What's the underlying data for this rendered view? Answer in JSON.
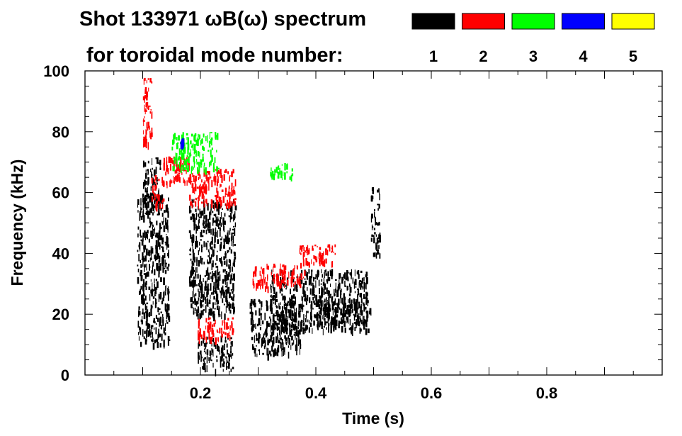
{
  "chart_data": {
    "type": "heatmap",
    "title": "Shot 133971 ωB(ω) spectrum",
    "legend_caption": "for toroidal mode number:",
    "legend": [
      {
        "label": "1",
        "color": "#000000"
      },
      {
        "label": "2",
        "color": "#ff0000"
      },
      {
        "label": "3",
        "color": "#00ff00"
      },
      {
        "label": "4",
        "color": "#0000ff"
      },
      {
        "label": "5",
        "color": "#ffff00"
      }
    ],
    "legend_placement": "top-right",
    "xlabel": "Time (s)",
    "ylabel": "Frequency (kHz)",
    "xlim": [
      0.0,
      1.0
    ],
    "ylim": [
      0,
      100
    ],
    "xticks": [
      {
        "value": 0.2,
        "label": "0.2"
      },
      {
        "value": 0.4,
        "label": "0.4"
      },
      {
        "value": 0.6,
        "label": "0.6"
      },
      {
        "value": 0.8,
        "label": "0.8"
      }
    ],
    "yticks": [
      {
        "value": 0,
        "label": "0"
      },
      {
        "value": 20,
        "label": "20"
      },
      {
        "value": 40,
        "label": "40"
      },
      {
        "value": 60,
        "label": "60"
      },
      {
        "value": 80,
        "label": "80"
      },
      {
        "value": 100,
        "label": "100"
      }
    ],
    "grid": false,
    "regions": [
      {
        "mode": "1",
        "t0": 0.09,
        "t1": 0.145,
        "f0": 10,
        "f1": 60
      },
      {
        "mode": "1",
        "t0": 0.1,
        "t1": 0.13,
        "f0": 55,
        "f1": 72
      },
      {
        "mode": "1",
        "t0": 0.18,
        "t1": 0.26,
        "f0": 20,
        "f1": 58
      },
      {
        "mode": "1",
        "t0": 0.195,
        "t1": 0.255,
        "f0": 2,
        "f1": 13
      },
      {
        "mode": "1",
        "t0": 0.285,
        "t1": 0.375,
        "f0": 7,
        "f1": 25
      },
      {
        "mode": "1",
        "t0": 0.32,
        "t1": 0.49,
        "f0": 15,
        "f1": 35
      },
      {
        "mode": "1",
        "t0": 0.4,
        "t1": 0.495,
        "f0": 17,
        "f1": 25
      },
      {
        "mode": "1",
        "t0": 0.495,
        "t1": 0.51,
        "f0": 40,
        "f1": 62
      },
      {
        "mode": "2",
        "t0": 0.1,
        "t1": 0.115,
        "f0": 75,
        "f1": 98
      },
      {
        "mode": "2",
        "t0": 0.115,
        "t1": 0.135,
        "f0": 56,
        "f1": 66
      },
      {
        "mode": "2",
        "t0": 0.135,
        "t1": 0.18,
        "f0": 63,
        "f1": 72
      },
      {
        "mode": "2",
        "t0": 0.18,
        "t1": 0.26,
        "f0": 56,
        "f1": 68
      },
      {
        "mode": "2",
        "t0": 0.29,
        "t1": 0.38,
        "f0": 29,
        "f1": 37
      },
      {
        "mode": "2",
        "t0": 0.37,
        "t1": 0.44,
        "f0": 37,
        "f1": 43
      },
      {
        "mode": "2",
        "t0": 0.195,
        "t1": 0.255,
        "f0": 12,
        "f1": 19
      },
      {
        "mode": "3",
        "t0": 0.15,
        "t1": 0.23,
        "f0": 68,
        "f1": 80
      },
      {
        "mode": "3",
        "t0": 0.32,
        "t1": 0.36,
        "f0": 65,
        "f1": 70
      },
      {
        "mode": "4",
        "t0": 0.165,
        "t1": 0.17,
        "f0": 76,
        "f1": 78
      }
    ]
  }
}
